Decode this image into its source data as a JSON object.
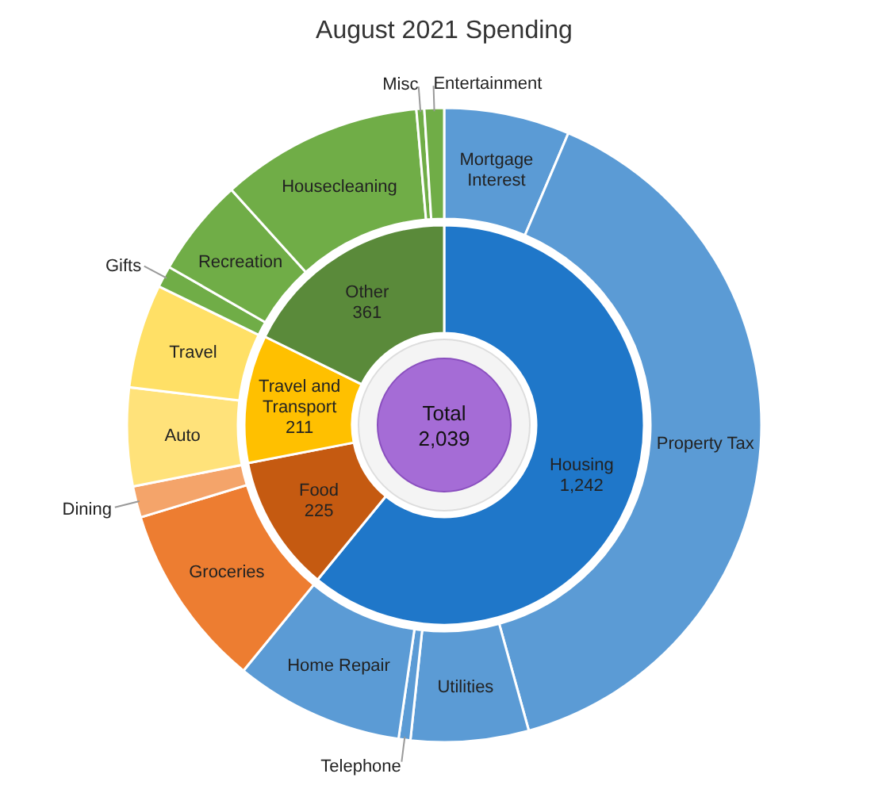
{
  "chart_data": [
    {
      "type": "donut",
      "title": "August 2021 Spending",
      "categories": [
        "Housing",
        "Food",
        "Travel and Transport",
        "Other"
      ],
      "values": [
        1242,
        225,
        211,
        361
      ],
      "value_labels": [
        "1,242",
        "225",
        "211",
        "361"
      ],
      "colors": [
        "#1f77c9",
        "#c55a11",
        "#ffc000",
        "#5a8a3a"
      ],
      "annotations": [
        "Total",
        "2,039"
      ]
    },
    {
      "type": "donut",
      "categories": [
        "Mortgage Interest",
        "Property Tax",
        "Utilities",
        "Telephone",
        "Home Repair",
        "Groceries",
        "Dining",
        "Auto",
        "Travel",
        "Gifts",
        "Recreation",
        "Housecleaning",
        "Misc",
        "Entertainment"
      ],
      "values": [
        6.4,
        39.3,
        6.0,
        0.6,
        8.6,
        9.4,
        1.6,
        5.0,
        5.3,
        1.1,
        5.0,
        10.3,
        0.4,
        1.0
      ],
      "colors": [
        "#5b9bd5",
        "#5b9bd5",
        "#5b9bd5",
        "#5b9bd5",
        "#5b9bd5",
        "#ed7d31",
        "#f4a46a",
        "#ffe27a",
        "#ffe066",
        "#70ad47",
        "#70ad47",
        "#70ad47",
        "#70ad47",
        "#70ad47"
      ]
    }
  ]
}
